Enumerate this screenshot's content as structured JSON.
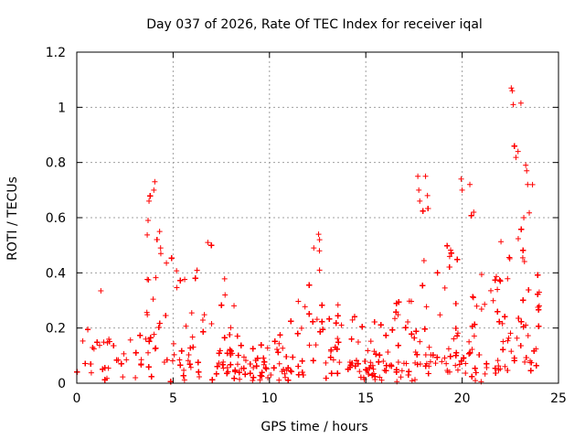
{
  "chart_data": {
    "type": "scatter",
    "title": "Day 037 of 2026, Rate Of TEC Index for receiver iqal",
    "xlabel": "GPS time / hours",
    "ylabel": "ROTI / TECUs",
    "xlim": [
      0,
      25
    ],
    "ylim": [
      0,
      1.2
    ],
    "xticks": [
      0,
      5,
      10,
      15,
      20,
      25
    ],
    "xtick_labels": [
      "0",
      "5",
      "10",
      "15",
      "20",
      "25"
    ],
    "yticks": [
      0,
      0.2,
      0.4,
      0.6,
      0.8,
      1,
      1.2
    ],
    "ytick_labels": [
      "0",
      "0.2",
      "0.4",
      "0.6",
      "0.8",
      "1",
      "1.2"
    ],
    "grid": true,
    "marker": "+",
    "color": "#ff0000",
    "series": [
      {
        "name": "ROTI",
        "envelope_x": [
          0,
          0.5,
          1,
          1.3,
          2,
          2.5,
          3,
          3.5,
          3.8,
          4.1,
          4.4,
          5,
          5.5,
          6,
          6.5,
          6.8,
          7.3,
          8,
          8.5,
          9,
          9.5,
          10,
          10.5,
          11,
          11.5,
          12,
          12.4,
          12.6,
          13,
          13.5,
          14,
          14.5,
          15,
          15.5,
          16,
          16.5,
          17,
          17.5,
          17.8,
          18.2,
          18.6,
          19,
          19.5,
          20,
          20.3,
          20.7,
          21,
          21.5,
          22,
          22.5,
          22.8,
          23.1,
          23.4,
          23.7,
          24
        ],
        "envelope_y": [
          0.08,
          0.2,
          0.22,
          0.33,
          0.22,
          0.2,
          0.25,
          0.45,
          0.65,
          0.72,
          0.55,
          0.45,
          0.35,
          0.4,
          0.45,
          0.5,
          0.4,
          0.3,
          0.2,
          0.12,
          0.12,
          0.14,
          0.18,
          0.25,
          0.3,
          0.35,
          0.5,
          0.54,
          0.35,
          0.3,
          0.28,
          0.25,
          0.22,
          0.2,
          0.25,
          0.35,
          0.4,
          0.52,
          0.75,
          0.7,
          0.5,
          0.45,
          0.5,
          0.74,
          0.65,
          0.6,
          0.4,
          0.45,
          0.55,
          0.7,
          1.07,
          0.85,
          1.02,
          0.78,
          0.35
        ],
        "baseline_y": [
          0.03,
          0.05,
          0.06,
          0.06,
          0.06,
          0.06,
          0.06,
          0.07,
          0.08,
          0.09,
          0.08,
          0.08,
          0.07,
          0.07,
          0.07,
          0.07,
          0.07,
          0.06,
          0.04,
          0.03,
          0.03,
          0.04,
          0.04,
          0.05,
          0.05,
          0.06,
          0.07,
          0.07,
          0.06,
          0.06,
          0.06,
          0.06,
          0.05,
          0.05,
          0.05,
          0.06,
          0.06,
          0.07,
          0.08,
          0.08,
          0.07,
          0.07,
          0.07,
          0.08,
          0.08,
          0.07,
          0.06,
          0.06,
          0.07,
          0.08,
          0.09,
          0.08,
          0.08,
          0.07,
          0.05
        ],
        "outliers": [
          [
            1.25,
            0.335
          ],
          [
            3.7,
            0.59
          ],
          [
            3.75,
            0.66
          ],
          [
            4.0,
            0.7
          ],
          [
            4.05,
            0.73
          ],
          [
            4.3,
            0.55
          ],
          [
            4.35,
            0.49
          ],
          [
            6.8,
            0.51
          ],
          [
            12.3,
            0.49
          ],
          [
            12.55,
            0.54
          ],
          [
            12.6,
            0.52
          ],
          [
            12.6,
            0.41
          ],
          [
            17.7,
            0.75
          ],
          [
            17.75,
            0.7
          ],
          [
            17.8,
            0.66
          ],
          [
            18.1,
            0.75
          ],
          [
            18.2,
            0.68
          ],
          [
            19.95,
            0.74
          ],
          [
            20.0,
            0.7
          ],
          [
            20.4,
            0.72
          ],
          [
            20.6,
            0.62
          ],
          [
            22.55,
            1.07
          ],
          [
            22.6,
            1.06
          ],
          [
            22.65,
            1.01
          ],
          [
            22.9,
            0.84
          ],
          [
            23.05,
            1.015
          ],
          [
            23.3,
            0.79
          ],
          [
            23.35,
            0.77
          ],
          [
            23.4,
            0.72
          ],
          [
            23.2,
            0.6
          ],
          [
            24.0,
            0.33
          ],
          [
            24.0,
            0.28
          ]
        ]
      }
    ]
  }
}
